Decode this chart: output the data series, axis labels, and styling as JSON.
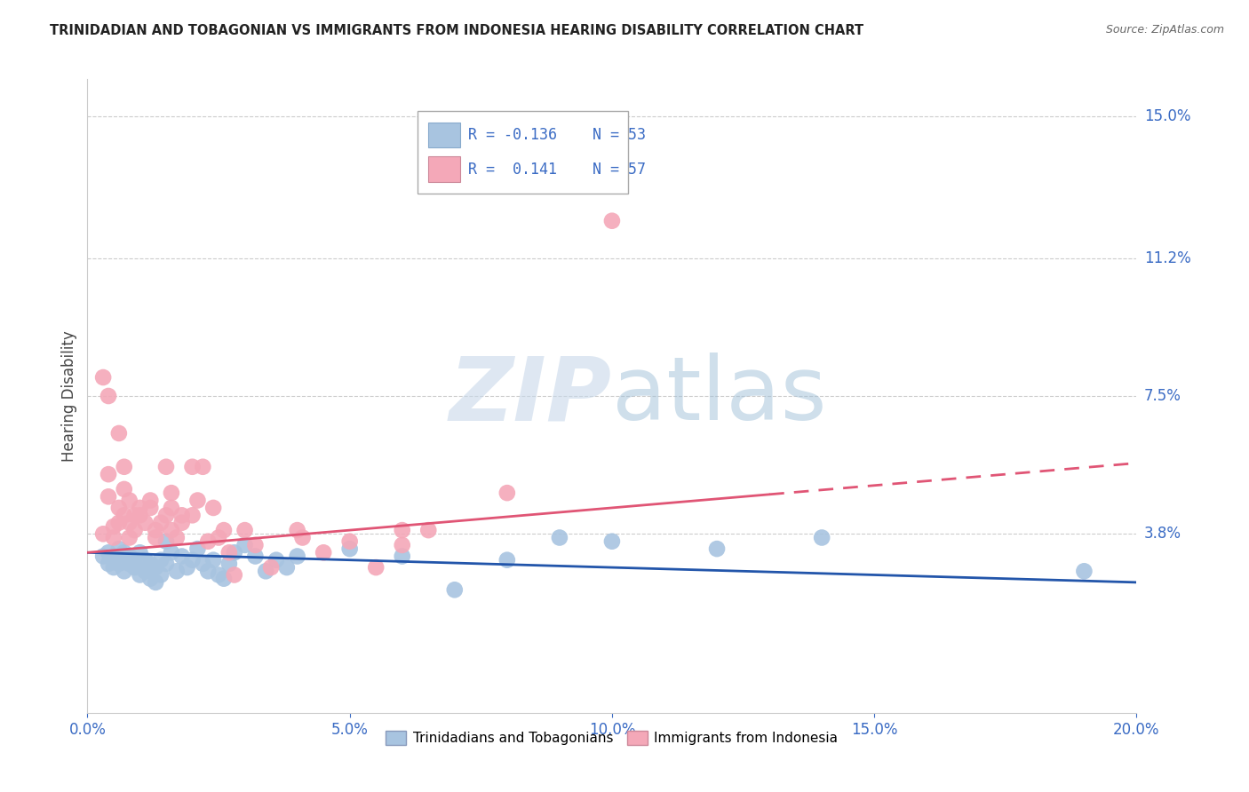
{
  "title": "TRINIDADIAN AND TOBAGONIAN VS IMMIGRANTS FROM INDONESIA HEARING DISABILITY CORRELATION CHART",
  "source": "Source: ZipAtlas.com",
  "xlabel_ticks": [
    "0.0%",
    "5.0%",
    "10.0%",
    "15.0%",
    "20.0%"
  ],
  "xlabel_vals": [
    0.0,
    0.05,
    0.1,
    0.15,
    0.2
  ],
  "ylabel": "Hearing Disability",
  "ylabel_ticks": [
    "15.0%",
    "11.2%",
    "7.5%",
    "3.8%"
  ],
  "ylabel_vals": [
    0.15,
    0.112,
    0.075,
    0.038
  ],
  "xmin": 0.0,
  "xmax": 0.2,
  "ymin": -0.01,
  "ymax": 0.16,
  "legend": {
    "blue_R": "-0.136",
    "blue_N": "53",
    "pink_R": " 0.141",
    "pink_N": "57"
  },
  "blue_color": "#a8c4e0",
  "pink_color": "#f4a8b8",
  "blue_edge_color": "#7aaace",
  "pink_edge_color": "#e87090",
  "blue_line_color": "#2255aa",
  "pink_line_color": "#e05575",
  "blue_points": [
    [
      0.003,
      0.032
    ],
    [
      0.004,
      0.03
    ],
    [
      0.004,
      0.033
    ],
    [
      0.005,
      0.031
    ],
    [
      0.005,
      0.029
    ],
    [
      0.006,
      0.034
    ],
    [
      0.006,
      0.03
    ],
    [
      0.007,
      0.033
    ],
    [
      0.007,
      0.028
    ],
    [
      0.008,
      0.032
    ],
    [
      0.008,
      0.03
    ],
    [
      0.009,
      0.031
    ],
    [
      0.009,
      0.029
    ],
    [
      0.01,
      0.033
    ],
    [
      0.01,
      0.027
    ],
    [
      0.011,
      0.031
    ],
    [
      0.011,
      0.028
    ],
    [
      0.012,
      0.03
    ],
    [
      0.012,
      0.026
    ],
    [
      0.013,
      0.029
    ],
    [
      0.013,
      0.025
    ],
    [
      0.014,
      0.027
    ],
    [
      0.014,
      0.031
    ],
    [
      0.015,
      0.036
    ],
    [
      0.015,
      0.03
    ],
    [
      0.016,
      0.033
    ],
    [
      0.017,
      0.028
    ],
    [
      0.018,
      0.032
    ],
    [
      0.019,
      0.029
    ],
    [
      0.02,
      0.031
    ],
    [
      0.021,
      0.034
    ],
    [
      0.022,
      0.03
    ],
    [
      0.023,
      0.028
    ],
    [
      0.024,
      0.031
    ],
    [
      0.025,
      0.027
    ],
    [
      0.026,
      0.026
    ],
    [
      0.027,
      0.03
    ],
    [
      0.028,
      0.033
    ],
    [
      0.03,
      0.035
    ],
    [
      0.032,
      0.032
    ],
    [
      0.034,
      0.028
    ],
    [
      0.036,
      0.031
    ],
    [
      0.038,
      0.029
    ],
    [
      0.04,
      0.032
    ],
    [
      0.05,
      0.034
    ],
    [
      0.06,
      0.032
    ],
    [
      0.07,
      0.023
    ],
    [
      0.08,
      0.031
    ],
    [
      0.09,
      0.037
    ],
    [
      0.1,
      0.036
    ],
    [
      0.12,
      0.034
    ],
    [
      0.14,
      0.037
    ],
    [
      0.19,
      0.028
    ]
  ],
  "pink_points": [
    [
      0.003,
      0.038
    ],
    [
      0.003,
      0.08
    ],
    [
      0.004,
      0.054
    ],
    [
      0.004,
      0.048
    ],
    [
      0.004,
      0.075
    ],
    [
      0.005,
      0.04
    ],
    [
      0.005,
      0.037
    ],
    [
      0.006,
      0.041
    ],
    [
      0.006,
      0.045
    ],
    [
      0.006,
      0.065
    ],
    [
      0.007,
      0.056
    ],
    [
      0.007,
      0.05
    ],
    [
      0.007,
      0.043
    ],
    [
      0.008,
      0.047
    ],
    [
      0.008,
      0.041
    ],
    [
      0.008,
      0.037
    ],
    [
      0.009,
      0.043
    ],
    [
      0.009,
      0.039
    ],
    [
      0.01,
      0.043
    ],
    [
      0.01,
      0.045
    ],
    [
      0.011,
      0.041
    ],
    [
      0.012,
      0.045
    ],
    [
      0.012,
      0.047
    ],
    [
      0.013,
      0.039
    ],
    [
      0.013,
      0.037
    ],
    [
      0.014,
      0.041
    ],
    [
      0.015,
      0.043
    ],
    [
      0.015,
      0.056
    ],
    [
      0.016,
      0.049
    ],
    [
      0.016,
      0.045
    ],
    [
      0.016,
      0.039
    ],
    [
      0.017,
      0.037
    ],
    [
      0.018,
      0.043
    ],
    [
      0.018,
      0.041
    ],
    [
      0.02,
      0.043
    ],
    [
      0.02,
      0.056
    ],
    [
      0.021,
      0.047
    ],
    [
      0.022,
      0.056
    ],
    [
      0.023,
      0.036
    ],
    [
      0.024,
      0.045
    ],
    [
      0.025,
      0.037
    ],
    [
      0.026,
      0.039
    ],
    [
      0.027,
      0.033
    ],
    [
      0.028,
      0.027
    ],
    [
      0.03,
      0.039
    ],
    [
      0.032,
      0.035
    ],
    [
      0.035,
      0.029
    ],
    [
      0.04,
      0.039
    ],
    [
      0.041,
      0.037
    ],
    [
      0.045,
      0.033
    ],
    [
      0.05,
      0.036
    ],
    [
      0.055,
      0.029
    ],
    [
      0.06,
      0.035
    ],
    [
      0.06,
      0.039
    ],
    [
      0.065,
      0.039
    ],
    [
      0.08,
      0.049
    ],
    [
      0.1,
      0.122
    ]
  ],
  "blue_line": {
    "x0": 0.0,
    "y0": 0.033,
    "x1": 0.2,
    "y1": 0.025
  },
  "pink_line": {
    "x0": 0.0,
    "y0": 0.033,
    "x1": 0.2,
    "y1": 0.057
  },
  "pink_line_dashed_start": 0.13
}
